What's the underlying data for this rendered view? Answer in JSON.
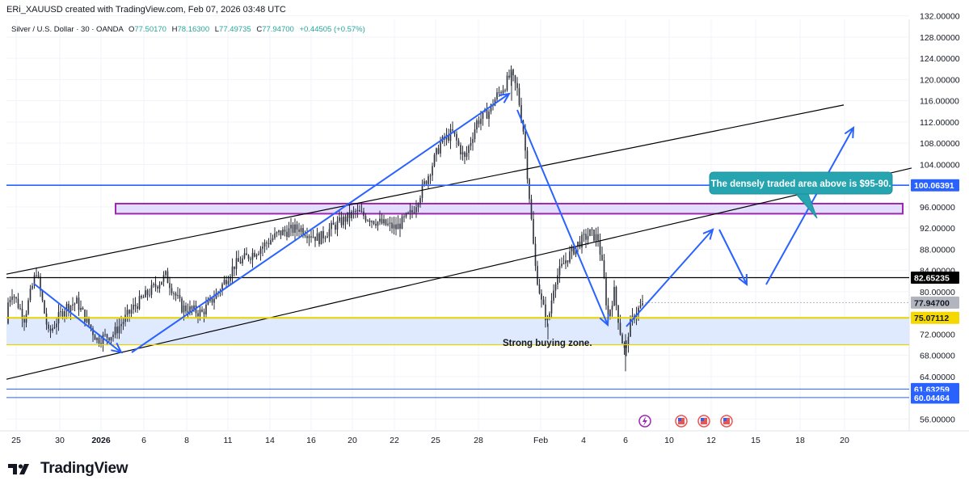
{
  "header": {
    "text": "ERi_XAUUSD created with TradingView.com, Feb 07, 2026 03:48 UTC"
  },
  "legend": {
    "symbol": "Silver / U.S. Dollar · 30 · OANDA",
    "open_label": "O",
    "open": "77.50170",
    "high_label": "H",
    "high": "78.16300",
    "low_label": "L",
    "low": "77.49735",
    "close_label": "C",
    "close": "77.94700",
    "change": "+0.44505 (+0.57%)"
  },
  "footer": {
    "brand": "TradingView"
  },
  "colors": {
    "up": "#26a69a",
    "down": "#ef5350",
    "arrow": "#2962ff",
    "callout_bg": "#26a5b1",
    "zone_fill": "#dbe6ff",
    "yellow_line": "#e6d200",
    "purple_box": "#9c27b0"
  },
  "chart_data": {
    "type": "candlestick",
    "title": "Silver / U.S. Dollar · 30 · OANDA",
    "xlabel": "",
    "ylabel": "",
    "ylim": [
      54,
      134
    ],
    "y_ticks": [
      "132.00000",
      "128.00000",
      "124.00000",
      "120.00000",
      "116.00000",
      "112.00000",
      "108.00000",
      "104.00000",
      "96.00000",
      "92.00000",
      "88.00000",
      "84.00000",
      "80.00000",
      "72.00000",
      "68.00000",
      "64.00000",
      "56.00000"
    ],
    "x_ticks": [
      "25",
      "30",
      "2026",
      "6",
      "8",
      "11",
      "14",
      "16",
      "20",
      "22",
      "25",
      "28",
      "Feb",
      "4",
      "6",
      "10",
      "12",
      "15",
      "18",
      "20"
    ],
    "price_path": [
      [
        0,
        74
      ],
      [
        15,
        80
      ],
      [
        30,
        75
      ],
      [
        45,
        84
      ],
      [
        60,
        72
      ],
      [
        80,
        77
      ],
      [
        95,
        78
      ],
      [
        120,
        71
      ],
      [
        140,
        72
      ],
      [
        165,
        77
      ],
      [
        185,
        80
      ],
      [
        205,
        83
      ],
      [
        225,
        77
      ],
      [
        250,
        76
      ],
      [
        270,
        80
      ],
      [
        290,
        85
      ],
      [
        320,
        88
      ],
      [
        345,
        91
      ],
      [
        370,
        92
      ],
      [
        395,
        90
      ],
      [
        410,
        92
      ],
      [
        440,
        95
      ],
      [
        470,
        93
      ],
      [
        490,
        92
      ],
      [
        510,
        95
      ],
      [
        530,
        102
      ],
      [
        545,
        108
      ],
      [
        560,
        110
      ],
      [
        575,
        105
      ],
      [
        590,
        112
      ],
      [
        605,
        114
      ],
      [
        615,
        117
      ],
      [
        625,
        119
      ],
      [
        632,
        121
      ],
      [
        640,
        118
      ],
      [
        648,
        110
      ],
      [
        655,
        98
      ],
      [
        662,
        85
      ],
      [
        670,
        78
      ],
      [
        678,
        74
      ],
      [
        686,
        82
      ],
      [
        700,
        86
      ],
      [
        715,
        89
      ],
      [
        730,
        91
      ],
      [
        740,
        90
      ],
      [
        747,
        83
      ],
      [
        752,
        75
      ],
      [
        760,
        80
      ],
      [
        768,
        72
      ],
      [
        774,
        68
      ],
      [
        778,
        73
      ],
      [
        786,
        76
      ],
      [
        797,
        77.9
      ]
    ],
    "current_price": "77.94700",
    "levels": [
      {
        "label": "100.06391",
        "value": 100.06391,
        "kind": "horizontal-line",
        "color": "#2962ff"
      },
      {
        "label": "82.65235",
        "value": 82.65235,
        "kind": "horizontal-line",
        "color": "#000000"
      },
      {
        "label": "75.07112",
        "value": 75.07112,
        "kind": "horizontal-line",
        "color": "#e6d200"
      },
      {
        "label": "61.63259",
        "value": 61.63259,
        "kind": "horizontal-line",
        "color": "#2962ff"
      },
      {
        "label": "60.04464",
        "value": 60.04464,
        "kind": "horizontal-line",
        "color": "#2962ff"
      }
    ],
    "zones": [
      {
        "label": "Strong buying zone.",
        "from": 70.0,
        "to": 75.07112
      },
      {
        "label": "",
        "from": 94.7,
        "to": 96.6
      }
    ],
    "annotations": [
      {
        "text": "The densely traded area above is $95-90."
      },
      {
        "text": "Strong buying zone."
      }
    ]
  }
}
